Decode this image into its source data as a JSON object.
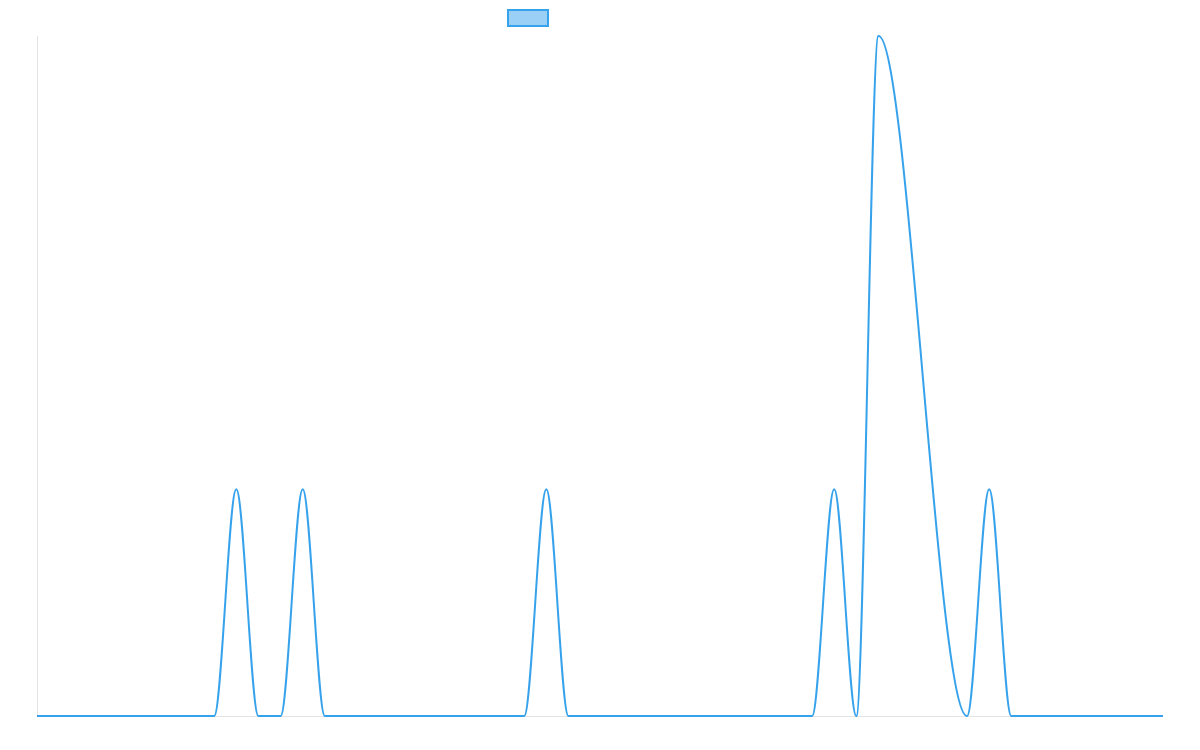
{
  "chart_data": {
    "type": "line",
    "title": "",
    "xlabel": "",
    "ylabel": "",
    "legend_position": "top-center",
    "grid": false,
    "xlim": [
      0,
      1017
    ],
    "ylim": [
      0,
      3
    ],
    "series": [
      {
        "x": [
          0,
          160,
          180,
          200,
          220,
          240,
          260,
          280,
          440,
          460,
          480,
          680,
          700,
          720,
          740,
          760,
          840,
          860,
          880,
          1017
        ],
        "values": [
          0,
          0,
          1,
          0,
          0,
          1,
          0,
          0,
          0,
          1,
          0,
          0,
          0,
          1,
          0,
          3,
          0,
          1,
          0,
          0
        ]
      }
    ]
  },
  "colors": {
    "line": "#36a2eb",
    "legend_fill": "#9ad0f5",
    "axis": "#e4e4e4",
    "background": "#ffffff"
  }
}
